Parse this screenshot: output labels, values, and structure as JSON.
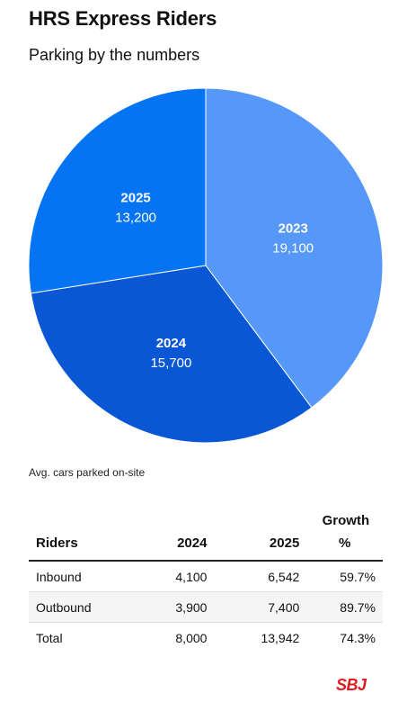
{
  "header": {
    "title": "HRS Express Riders",
    "subtitle": "Parking by the numbers"
  },
  "chart_data": {
    "type": "pie",
    "title": "HRS Express Riders",
    "subtitle": "Parking by the numbers",
    "slices": [
      {
        "label": "2023",
        "value": 19100,
        "value_label": "19,100",
        "color": "#5598f7"
      },
      {
        "label": "2024",
        "value": 15700,
        "value_label": "15,700",
        "color": "#0a57d6"
      },
      {
        "label": "2025",
        "value": 13200,
        "value_label": "13,200",
        "color": "#0574f3"
      }
    ],
    "start": "12 o'clock",
    "direction": "clockwise"
  },
  "footnote": "Avg. cars parked on-site",
  "table": {
    "headers": [
      "Riders",
      "2024",
      "2025",
      "Growth %"
    ],
    "rows": [
      [
        "Inbound",
        "4,100",
        "6,542",
        "59.7%"
      ],
      [
        "Outbound",
        "3,900",
        "7,400",
        "89.7%"
      ],
      [
        "Total",
        "8,000",
        "13,942",
        "74.3%"
      ]
    ]
  },
  "logo": {
    "text": "SBJ",
    "color": "#e11b22"
  }
}
